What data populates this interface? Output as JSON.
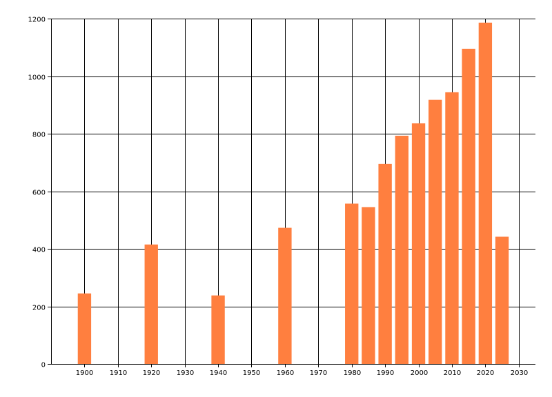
{
  "chart_data": {
    "type": "bar",
    "title": "",
    "xlabel": "",
    "ylabel": "",
    "x": [
      1900,
      1920,
      1940,
      1960,
      1980,
      1985,
      1990,
      1995,
      2000,
      2005,
      2010,
      2015,
      2020,
      2025
    ],
    "values": [
      245,
      415,
      238,
      473,
      557,
      545,
      695,
      793,
      836,
      918,
      944,
      1095,
      1186,
      442
    ],
    "xlim": [
      1890,
      2035
    ],
    "ylim": [
      0,
      1200
    ],
    "x_ticks": [
      1900,
      1910,
      1920,
      1930,
      1940,
      1950,
      1960,
      1970,
      1980,
      1990,
      2000,
      2010,
      2020,
      2030
    ],
    "y_ticks": [
      0,
      200,
      400,
      600,
      800,
      1000,
      1200
    ],
    "bar_width_years": 4,
    "grid": true,
    "colors": {
      "bar": "#ff7f3f",
      "grid": "#000000",
      "axis": "#000000",
      "background": "#ffffff"
    }
  }
}
